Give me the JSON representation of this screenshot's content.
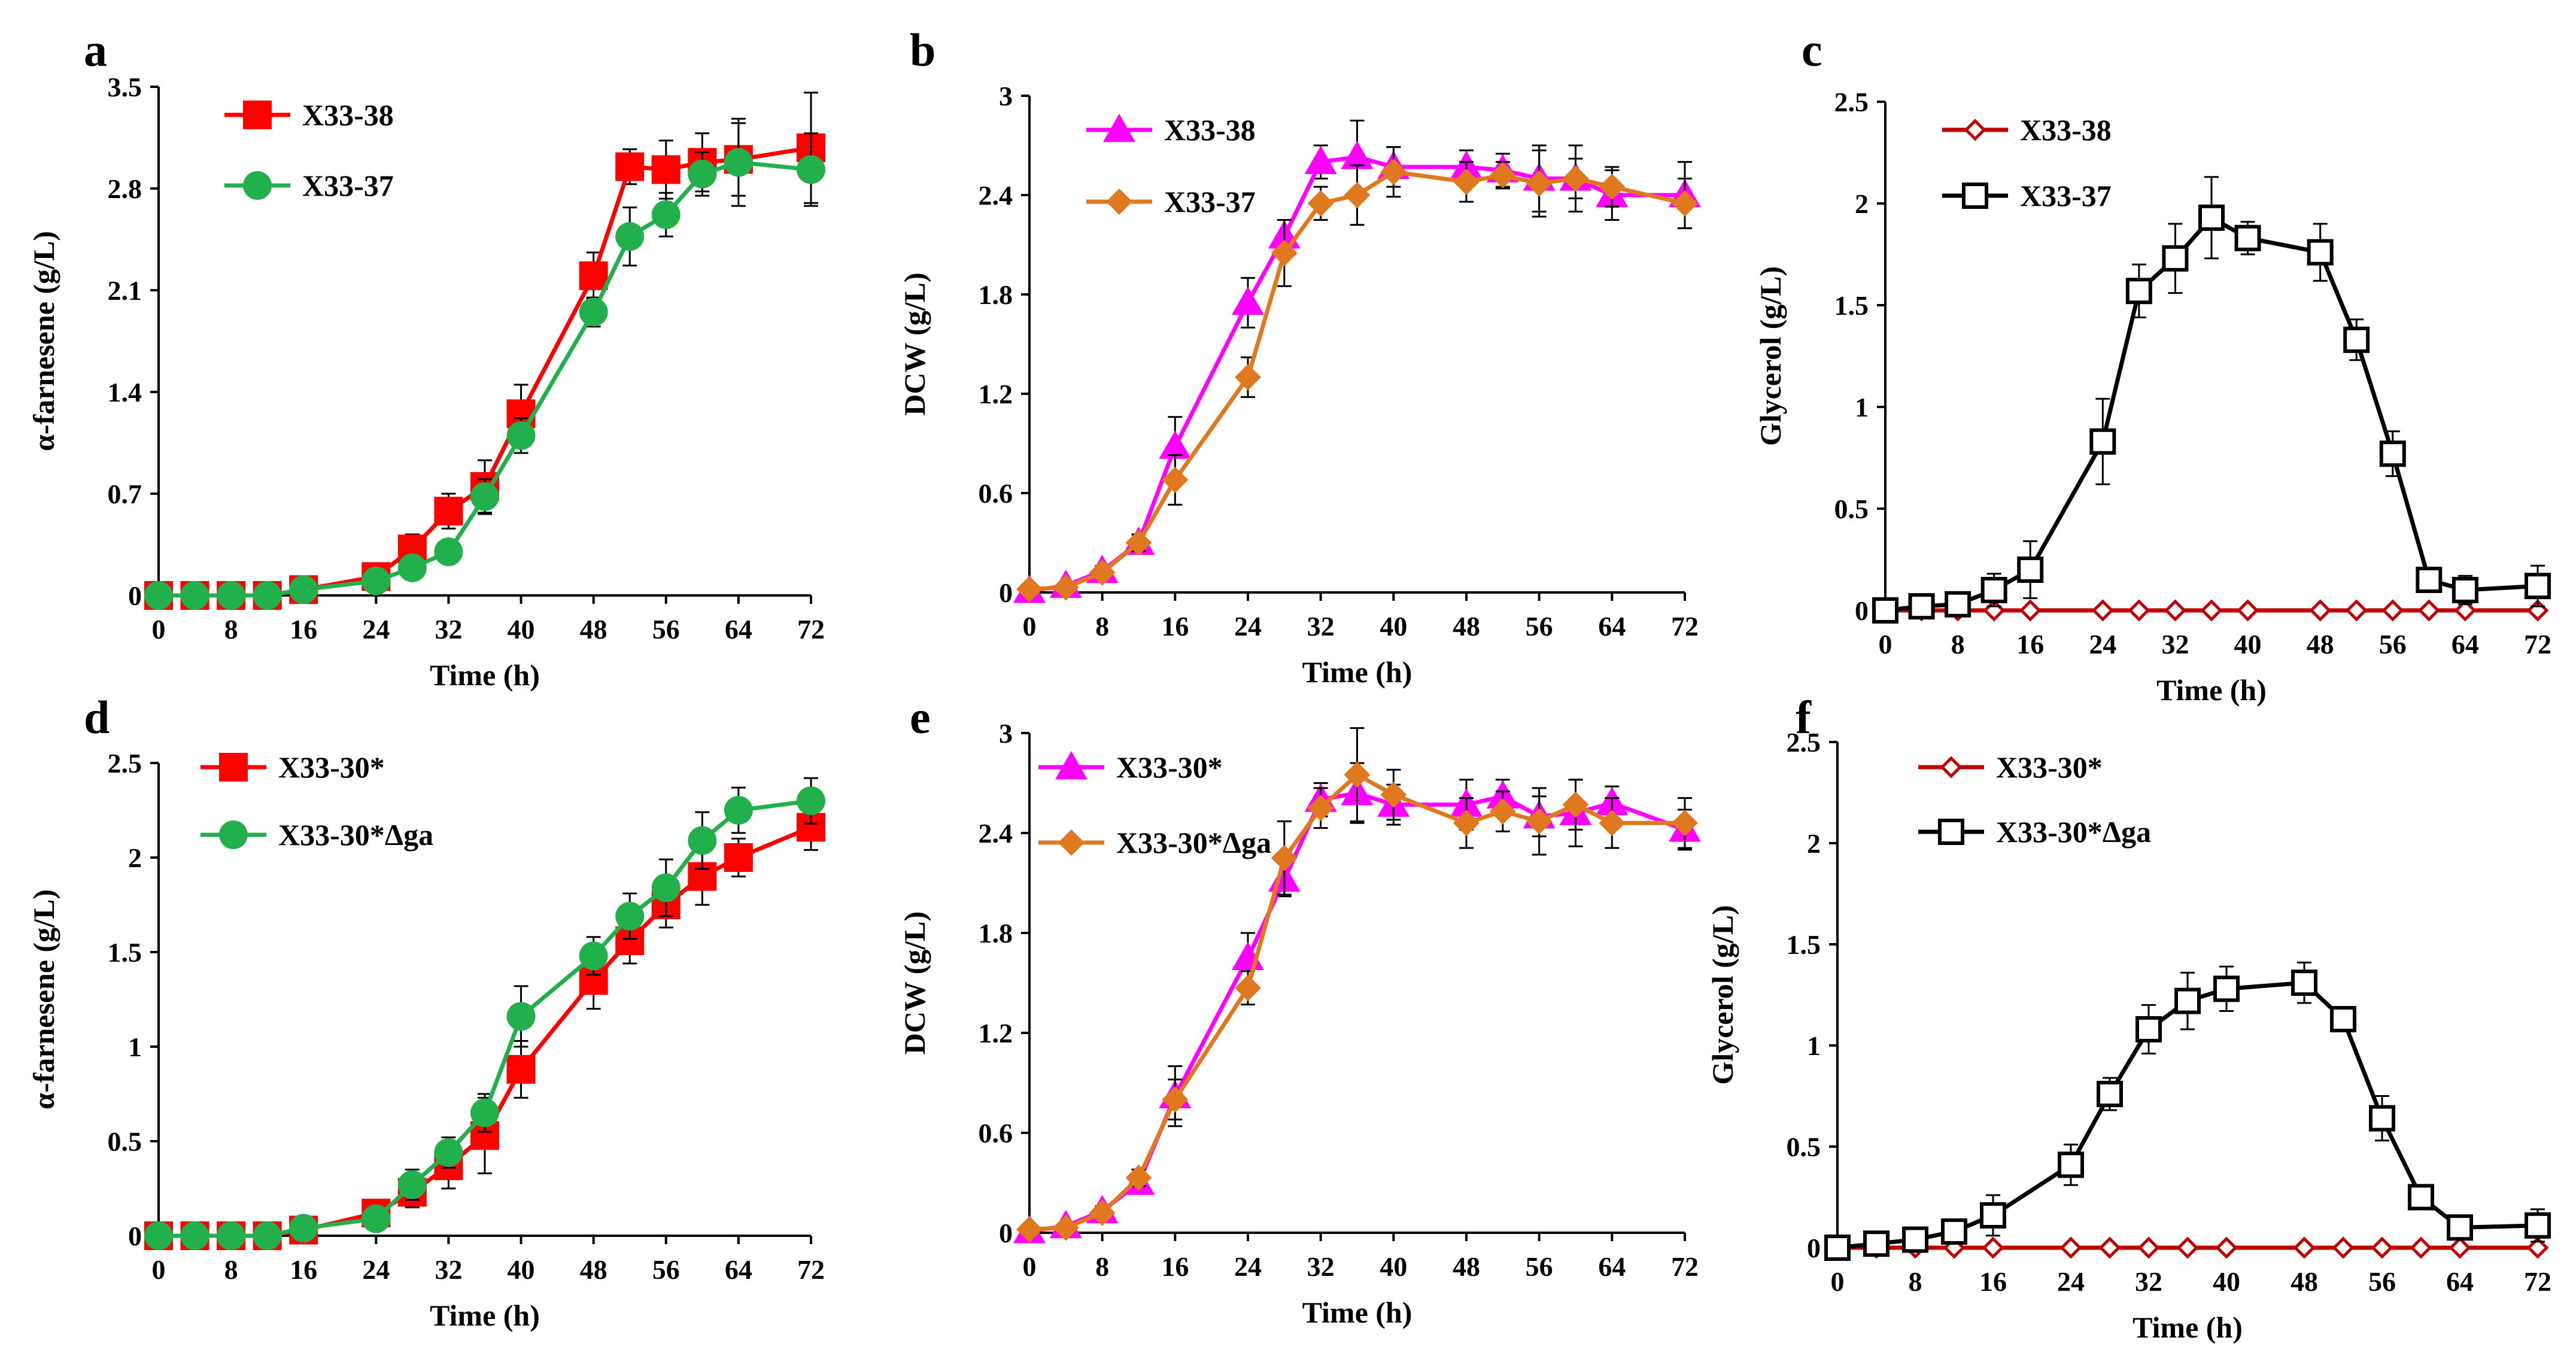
{
  "colors": {
    "red": "#ff0000",
    "green": "#22b04c",
    "magenta": "#ff00ff",
    "orange": "#e07820",
    "darkred": "#c00000",
    "black": "#000000"
  },
  "chart_data": [
    {
      "letter": "a",
      "type": "line",
      "xlabel": "Time (h)",
      "ylabel": "α-farnesene (g/L)",
      "xlim": [
        0,
        72
      ],
      "ylim": [
        0,
        3.5
      ],
      "xticks": [
        0,
        8,
        16,
        24,
        32,
        40,
        48,
        56,
        64,
        72
      ],
      "yticks": [
        0,
        0.7,
        1.4,
        2.1,
        2.8,
        3.5
      ],
      "ytick_labels": [
        "0",
        "0.7",
        "1.4",
        "2.1",
        "2.8",
        "3.5"
      ],
      "x": [
        0,
        4,
        8,
        12,
        16,
        24,
        28,
        32,
        36,
        40,
        48,
        52,
        56,
        60,
        64,
        72
      ],
      "series": [
        {
          "name": "X33-38",
          "color": "red",
          "marker": "square",
          "values": [
            0,
            0,
            0,
            0,
            0.04,
            0.13,
            0.32,
            0.58,
            0.75,
            1.25,
            2.2,
            2.95,
            2.93,
            2.98,
            3.0,
            3.08
          ],
          "errors": [
            0,
            0,
            0,
            0,
            0.02,
            0.04,
            0.1,
            0.12,
            0.18,
            0.2,
            0.16,
            0.12,
            0.2,
            0.2,
            0.25,
            0.38
          ]
        },
        {
          "name": "X33-37",
          "color": "green",
          "marker": "circle",
          "values": [
            0,
            0,
            0,
            0,
            0.04,
            0.1,
            0.19,
            0.3,
            0.68,
            1.1,
            1.95,
            2.47,
            2.62,
            2.9,
            2.98,
            2.93
          ],
          "errors": [
            0,
            0,
            0,
            0,
            0.02,
            0.03,
            0.06,
            0.06,
            0.12,
            0.12,
            0.1,
            0.2,
            0.15,
            0.15,
            0.3,
            0.25
          ]
        }
      ]
    },
    {
      "letter": "b",
      "type": "line",
      "xlabel": "Time (h)",
      "ylabel": "DCW (g/L)",
      "xlim": [
        0,
        72
      ],
      "ylim": [
        0,
        3
      ],
      "xticks": [
        0,
        8,
        16,
        24,
        32,
        40,
        48,
        56,
        64,
        72
      ],
      "yticks": [
        0,
        0.6,
        1.2,
        1.8,
        2.4,
        3.0
      ],
      "ytick_labels": [
        "0",
        "0.6",
        "1.2",
        "1.8",
        "2.4",
        "3"
      ],
      "x": [
        0,
        4,
        8,
        12,
        16,
        24,
        28,
        32,
        36,
        40,
        48,
        52,
        56,
        60,
        64,
        72
      ],
      "series": [
        {
          "name": "X33-38",
          "color": "magenta",
          "marker": "triangle",
          "values": [
            0.01,
            0.04,
            0.13,
            0.3,
            0.88,
            1.75,
            2.15,
            2.6,
            2.63,
            2.57,
            2.57,
            2.55,
            2.5,
            2.5,
            2.4,
            2.4
          ],
          "errors": [
            0.01,
            0.01,
            0.03,
            0.05,
            0.18,
            0.15,
            0.1,
            0.1,
            0.22,
            0.12,
            0.1,
            0.1,
            0.2,
            0.2,
            0.15,
            0.2
          ]
        },
        {
          "name": "X33-37",
          "color": "orange",
          "marker": "diamond",
          "values": [
            0.02,
            0.03,
            0.12,
            0.3,
            0.68,
            1.3,
            2.05,
            2.35,
            2.4,
            2.54,
            2.48,
            2.52,
            2.47,
            2.5,
            2.45,
            2.35
          ],
          "errors": [
            0.01,
            0.01,
            0.03,
            0.05,
            0.15,
            0.12,
            0.2,
            0.1,
            0.18,
            0.15,
            0.12,
            0.08,
            0.2,
            0.12,
            0.12,
            0.15
          ]
        }
      ]
    },
    {
      "letter": "c",
      "type": "line",
      "xlabel": "Time (h)",
      "ylabel": "Glycerol (g/L)",
      "xlim": [
        0,
        72
      ],
      "ylim": [
        0,
        2.5
      ],
      "xticks": [
        0,
        8,
        16,
        24,
        32,
        40,
        48,
        56,
        64,
        72
      ],
      "yticks": [
        0,
        0.5,
        1.0,
        1.5,
        2.0,
        2.5
      ],
      "ytick_labels": [
        "0",
        "0.5",
        "1",
        "1.5",
        "2",
        "2.5"
      ],
      "x": [
        0,
        4,
        8,
        12,
        16,
        24,
        28,
        32,
        36,
        40,
        48,
        52,
        56,
        60,
        64,
        72
      ],
      "series": [
        {
          "name": "X33-38",
          "color": "darkred",
          "marker": "diamond-open",
          "values": [
            0,
            0,
            0,
            0,
            0,
            0,
            0,
            0,
            0,
            0,
            0,
            0,
            0,
            0,
            0,
            0
          ],
          "errors": [
            0,
            0,
            0,
            0,
            0,
            0,
            0,
            0,
            0,
            0,
            0,
            0,
            0,
            0,
            0,
            0
          ]
        },
        {
          "name": "X33-37",
          "color": "black",
          "marker": "square-open",
          "values": [
            0,
            0.02,
            0.03,
            0.1,
            0.2,
            0.83,
            1.57,
            1.73,
            1.93,
            1.83,
            1.76,
            1.33,
            0.77,
            0.15,
            0.1,
            0.12
          ],
          "errors": [
            0,
            0.01,
            0.02,
            0.08,
            0.14,
            0.21,
            0.13,
            0.17,
            0.2,
            0.08,
            0.14,
            0.1,
            0.11,
            0.05,
            0.07,
            0.1
          ]
        }
      ]
    },
    {
      "letter": "d",
      "type": "line",
      "xlabel": "Time (h)",
      "ylabel": "α-farnesene (g/L)",
      "xlim": [
        0,
        72
      ],
      "ylim": [
        0,
        2.5
      ],
      "xticks": [
        0,
        8,
        16,
        24,
        32,
        40,
        48,
        56,
        64,
        72
      ],
      "yticks": [
        0,
        0.5,
        1.0,
        1.5,
        2.0,
        2.5
      ],
      "ytick_labels": [
        "0",
        "0.5",
        "1",
        "1.5",
        "2",
        "2.5"
      ],
      "x": [
        0,
        4,
        8,
        12,
        16,
        24,
        28,
        32,
        36,
        40,
        48,
        52,
        56,
        60,
        64,
        72
      ],
      "series": [
        {
          "name": "X33-30*",
          "color": "red",
          "marker": "square",
          "values": [
            0,
            0,
            0,
            0,
            0.03,
            0.12,
            0.23,
            0.37,
            0.53,
            0.88,
            1.35,
            1.56,
            1.75,
            1.9,
            2.0,
            2.16
          ],
          "errors": [
            0,
            0,
            0,
            0,
            0.02,
            0.04,
            0.08,
            0.12,
            0.2,
            0.15,
            0.15,
            0.12,
            0.12,
            0.15,
            0.1,
            0.12
          ]
        },
        {
          "name": "X33-30*Δga",
          "color": "green",
          "marker": "circle",
          "values": [
            0,
            0,
            0,
            0,
            0.04,
            0.09,
            0.27,
            0.44,
            0.65,
            1.16,
            1.48,
            1.69,
            1.84,
            2.09,
            2.25,
            2.3
          ],
          "errors": [
            0,
            0,
            0,
            0,
            0.02,
            0.03,
            0.08,
            0.08,
            0.1,
            0.16,
            0.1,
            0.12,
            0.15,
            0.15,
            0.12,
            0.12
          ]
        }
      ]
    },
    {
      "letter": "e",
      "type": "line",
      "xlabel": "Time (h)",
      "ylabel": "DCW (g/L)",
      "xlim": [
        0,
        72
      ],
      "ylim": [
        0,
        3
      ],
      "xticks": [
        0,
        8,
        16,
        24,
        32,
        40,
        48,
        56,
        64,
        72
      ],
      "yticks": [
        0,
        0.6,
        1.2,
        1.8,
        2.4,
        3.0
      ],
      "ytick_labels": [
        "0",
        "0.6",
        "1.2",
        "1.8",
        "2.4",
        "3"
      ],
      "x": [
        0,
        4,
        8,
        12,
        16,
        24,
        28,
        32,
        36,
        40,
        48,
        52,
        56,
        60,
        64,
        72
      ],
      "series": [
        {
          "name": "X33-30*",
          "color": "magenta",
          "marker": "triangle",
          "values": [
            0.01,
            0.04,
            0.13,
            0.3,
            0.82,
            1.65,
            2.12,
            2.6,
            2.64,
            2.57,
            2.57,
            2.62,
            2.5,
            2.52,
            2.58,
            2.42
          ],
          "errors": [
            0.01,
            0.01,
            0.03,
            0.05,
            0.18,
            0.15,
            0.1,
            0.1,
            0.18,
            0.12,
            0.15,
            0.1,
            0.12,
            0.2,
            0.1,
            0.12
          ]
        },
        {
          "name": "X33-30*Δga",
          "color": "orange",
          "marker": "diamond",
          "values": [
            0.02,
            0.03,
            0.12,
            0.33,
            0.8,
            1.47,
            2.25,
            2.55,
            2.75,
            2.63,
            2.46,
            2.53,
            2.47,
            2.57,
            2.46,
            2.46
          ],
          "errors": [
            0.01,
            0.01,
            0.03,
            0.05,
            0.12,
            0.1,
            0.22,
            0.12,
            0.28,
            0.15,
            0.15,
            0.12,
            0.2,
            0.15,
            0.15,
            0.15
          ]
        }
      ]
    },
    {
      "letter": "f",
      "type": "line",
      "xlabel": "Time (h)",
      "ylabel": "Glycerol (g/L)",
      "xlim": [
        0,
        72
      ],
      "ylim": [
        0,
        2.5
      ],
      "xticks": [
        0,
        8,
        16,
        24,
        32,
        40,
        48,
        56,
        64,
        72
      ],
      "yticks": [
        0,
        0.5,
        1.0,
        1.5,
        2.0,
        2.5
      ],
      "ytick_labels": [
        "0",
        "0.5",
        "1",
        "1.5",
        "2",
        "2.5"
      ],
      "x": [
        0,
        4,
        8,
        12,
        16,
        24,
        28,
        32,
        36,
        40,
        48,
        52,
        56,
        60,
        64,
        72
      ],
      "series": [
        {
          "name": "X33-30*",
          "color": "darkred",
          "marker": "diamond-open",
          "values": [
            0,
            0,
            0,
            0,
            0,
            0,
            0,
            0,
            0,
            0,
            0,
            0,
            0,
            0,
            0,
            0
          ],
          "errors": [
            0,
            0,
            0,
            0,
            0,
            0,
            0,
            0,
            0,
            0,
            0,
            0,
            0,
            0,
            0,
            0
          ]
        },
        {
          "name": "X33-30*Δga",
          "color": "black",
          "marker": "square-open",
          "values": [
            0,
            0.02,
            0.04,
            0.08,
            0.16,
            0.41,
            0.76,
            1.08,
            1.22,
            1.28,
            1.31,
            1.13,
            0.64,
            0.25,
            0.1,
            0.11
          ],
          "errors": [
            0,
            0.01,
            0.02,
            0.06,
            0.1,
            0.1,
            0.08,
            0.12,
            0.14,
            0.11,
            0.1,
            0.06,
            0.11,
            0.04,
            0.03,
            0.08
          ]
        }
      ]
    }
  ]
}
